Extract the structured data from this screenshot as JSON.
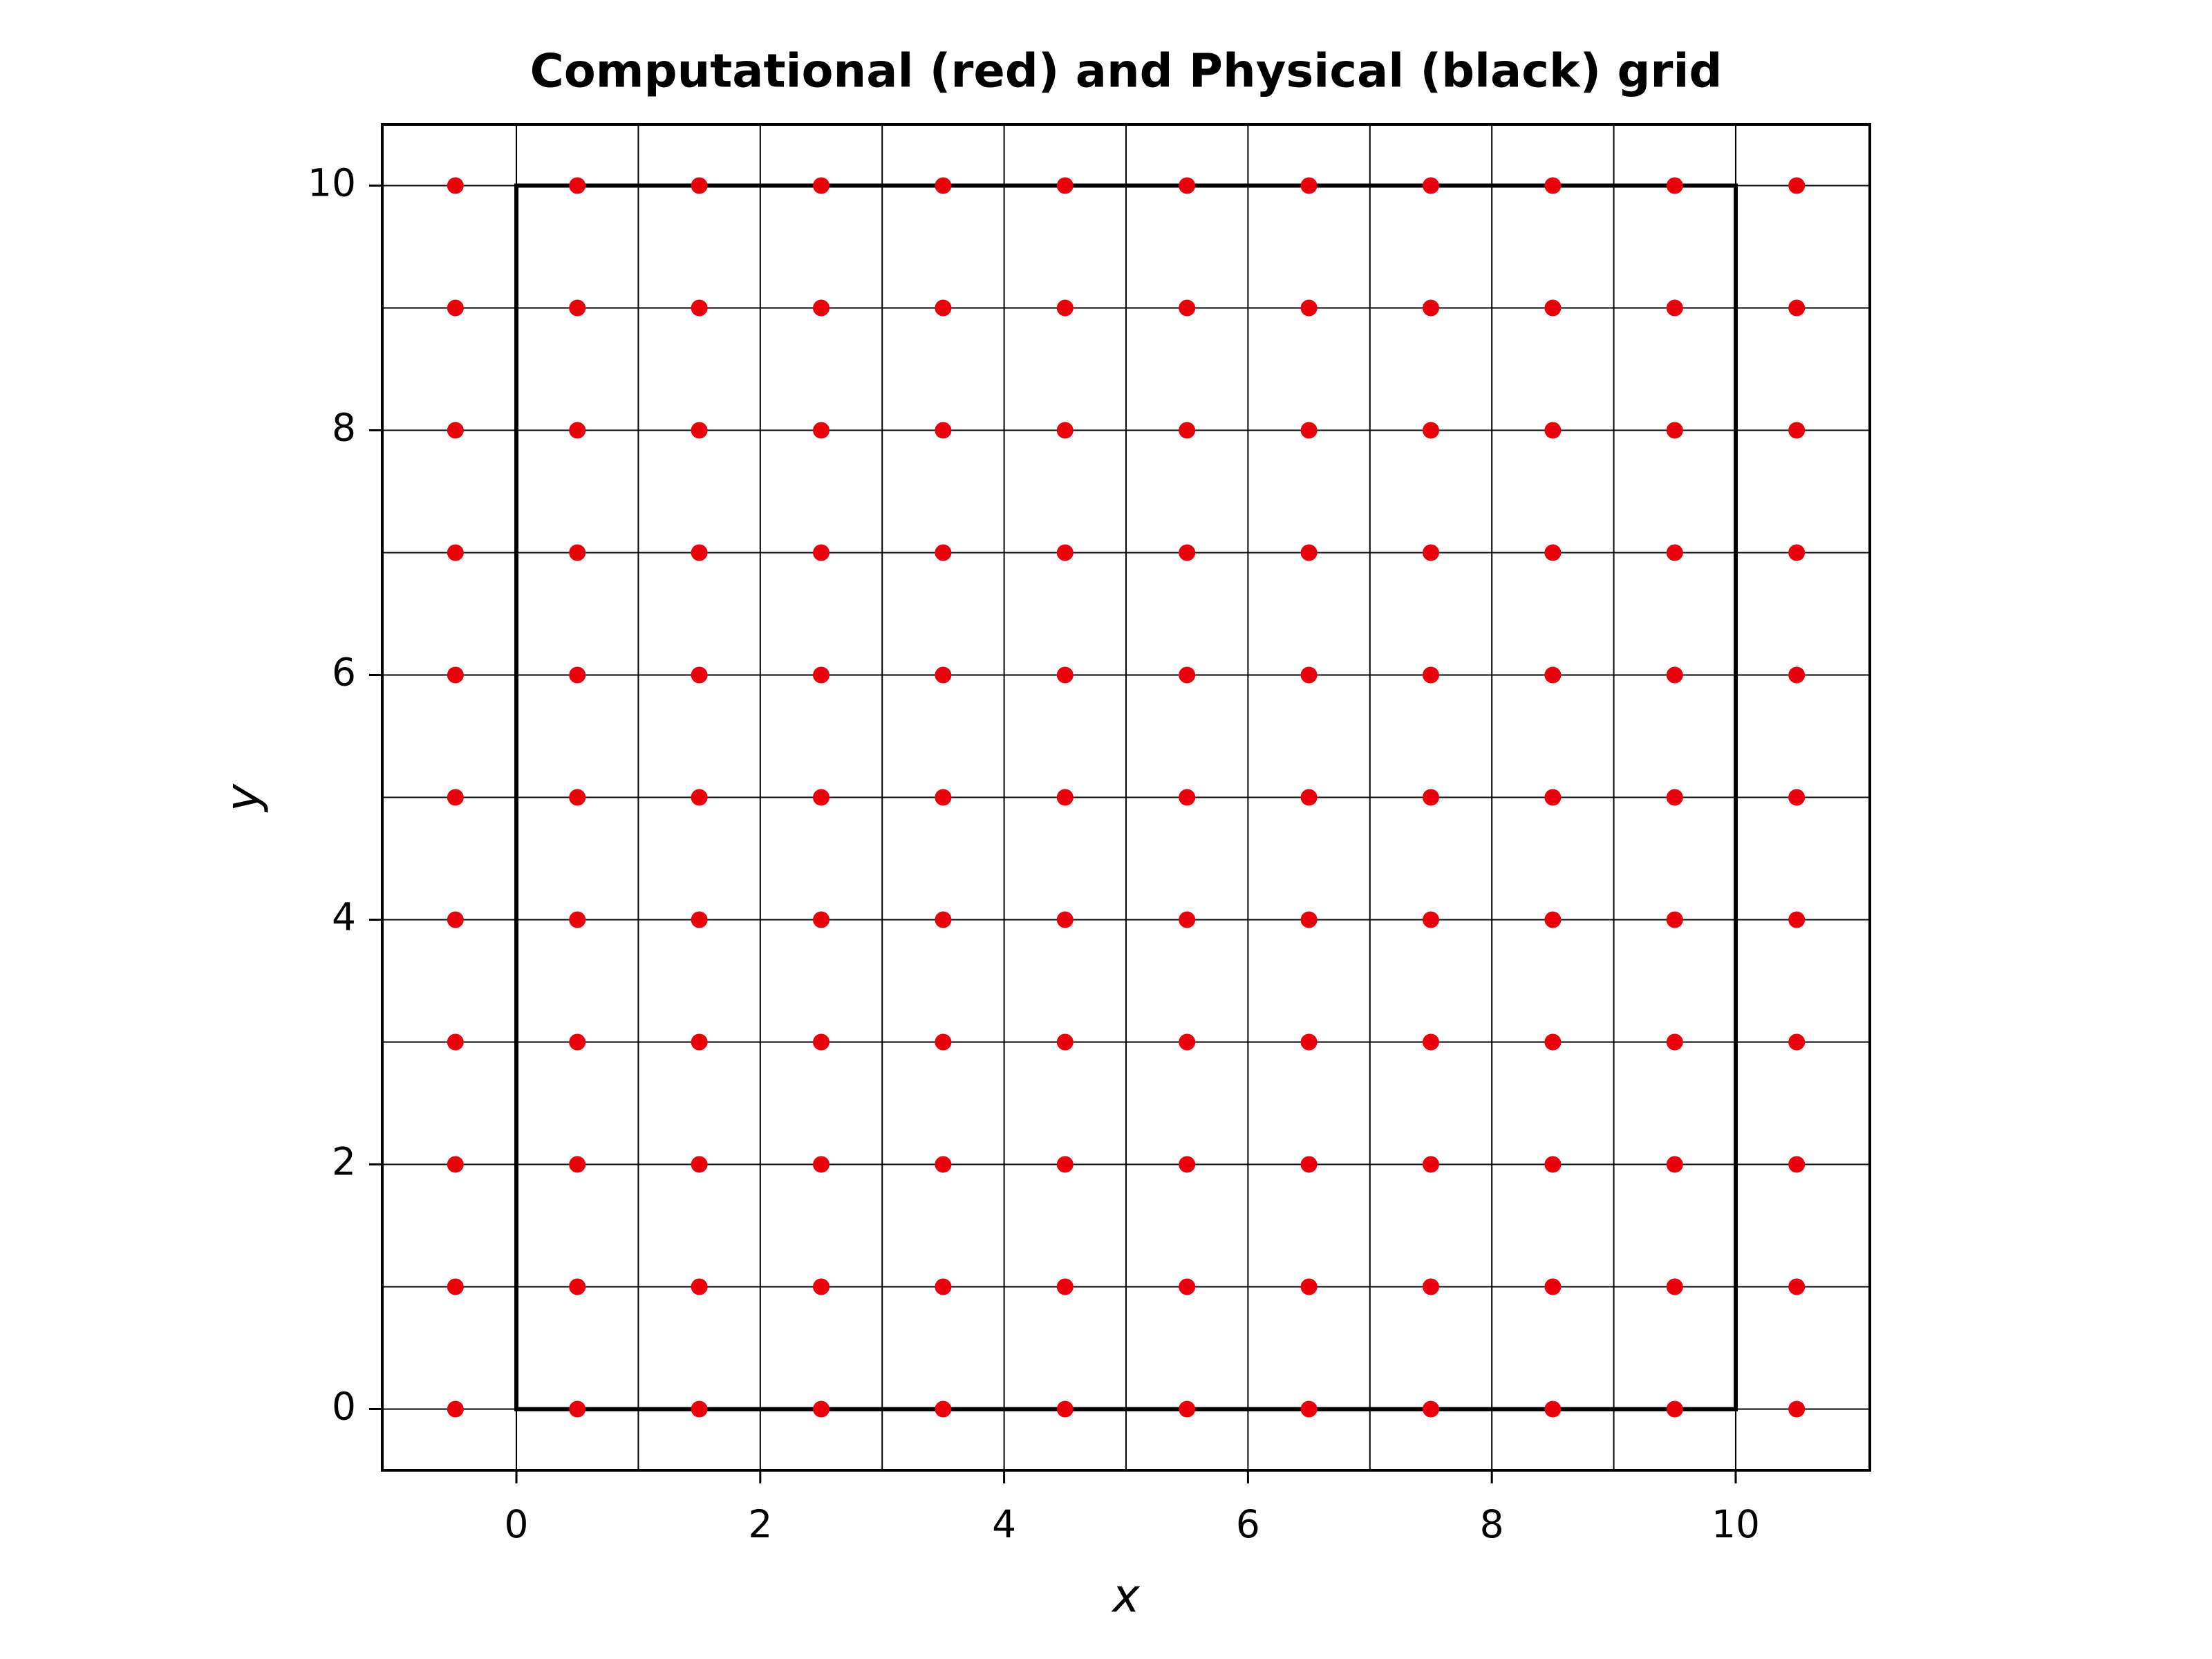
{
  "chart_data": {
    "type": "scatter",
    "title": "Computational (red) and Physical (black) grid",
    "xlabel": "x",
    "ylabel": "y",
    "color": "#e8000b",
    "x": [
      -0.5,
      0.5,
      1.5,
      2.5,
      3.5,
      4.5,
      5.5,
      6.5,
      7.5,
      8.5,
      9.5,
      10.5,
      -0.5,
      0.5,
      1.5,
      2.5,
      3.5,
      4.5,
      5.5,
      6.5,
      7.5,
      8.5,
      9.5,
      10.5,
      -0.5,
      0.5,
      1.5,
      2.5,
      3.5,
      4.5,
      5.5,
      6.5,
      7.5,
      8.5,
      9.5,
      10.5,
      -0.5,
      0.5,
      1.5,
      2.5,
      3.5,
      4.5,
      5.5,
      6.5,
      7.5,
      8.5,
      9.5,
      10.5,
      -0.5,
      0.5,
      1.5,
      2.5,
      3.5,
      4.5,
      5.5,
      6.5,
      7.5,
      8.5,
      9.5,
      10.5,
      -0.5,
      0.5,
      1.5,
      2.5,
      3.5,
      4.5,
      5.5,
      6.5,
      7.5,
      8.5,
      9.5,
      10.5,
      -0.5,
      0.5,
      1.5,
      2.5,
      3.5,
      4.5,
      5.5,
      6.5,
      7.5,
      8.5,
      9.5,
      10.5,
      -0.5,
      0.5,
      1.5,
      2.5,
      3.5,
      4.5,
      5.5,
      6.5,
      7.5,
      8.5,
      9.5,
      10.5,
      -0.5,
      0.5,
      1.5,
      2.5,
      3.5,
      4.5,
      5.5,
      6.5,
      7.5,
      8.5,
      9.5,
      10.5,
      -0.5,
      0.5,
      1.5,
      2.5,
      3.5,
      4.5,
      5.5,
      6.5,
      7.5,
      8.5,
      9.5,
      10.5,
      -0.5,
      0.5,
      1.5,
      2.5,
      3.5,
      4.5,
      5.5,
      6.5,
      7.5,
      8.5,
      9.5,
      10.5
    ],
    "y": [
      0,
      0,
      0,
      0,
      0,
      0,
      0,
      0,
      0,
      0,
      0,
      0,
      1,
      1,
      1,
      1,
      1,
      1,
      1,
      1,
      1,
      1,
      1,
      1,
      2,
      2,
      2,
      2,
      2,
      2,
      2,
      2,
      2,
      2,
      2,
      2,
      3,
      3,
      3,
      3,
      3,
      3,
      3,
      3,
      3,
      3,
      3,
      3,
      4,
      4,
      4,
      4,
      4,
      4,
      4,
      4,
      4,
      4,
      4,
      4,
      5,
      5,
      5,
      5,
      5,
      5,
      5,
      5,
      5,
      5,
      5,
      5,
      6,
      6,
      6,
      6,
      6,
      6,
      6,
      6,
      6,
      6,
      6,
      6,
      7,
      7,
      7,
      7,
      7,
      7,
      7,
      7,
      7,
      7,
      7,
      7,
      8,
      8,
      8,
      8,
      8,
      8,
      8,
      8,
      8,
      8,
      8,
      8,
      9,
      9,
      9,
      9,
      9,
      9,
      9,
      9,
      9,
      9,
      9,
      9,
      10,
      10,
      10,
      10,
      10,
      10,
      10,
      10,
      10,
      10,
      10,
      10
    ],
    "physical_grid": {
      "x": [
        0,
        1,
        2,
        3,
        4,
        5,
        6,
        7,
        8,
        9,
        10
      ],
      "y": [
        0,
        1,
        2,
        3,
        4,
        5,
        6,
        7,
        8,
        9,
        10
      ]
    },
    "boundary": {
      "x": [
        0,
        10
      ],
      "y": [
        0,
        10
      ]
    },
    "xlim": [
      -1.1,
      11.1
    ],
    "ylim": [
      -0.5,
      10.5
    ],
    "xticks": [
      0,
      2,
      4,
      6,
      8,
      10
    ],
    "yticks": [
      0,
      2,
      4,
      6,
      8,
      10
    ]
  }
}
